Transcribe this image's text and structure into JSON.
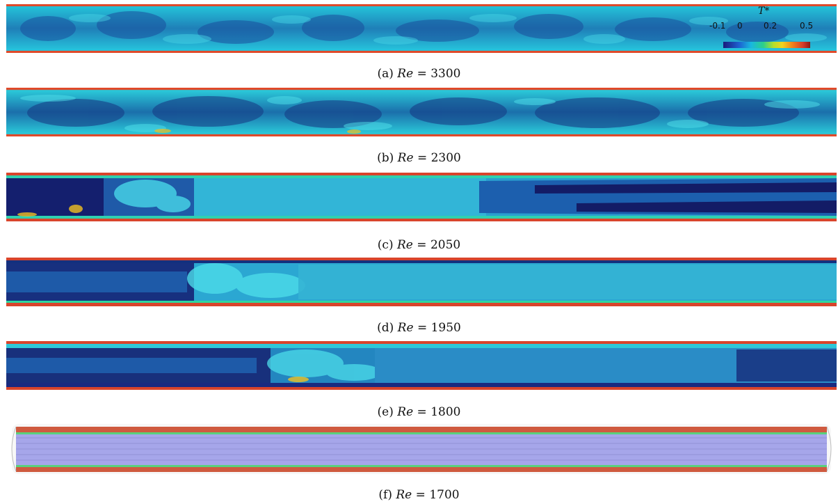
{
  "figure": {
    "colorbar": {
      "title": "T*",
      "ticks": [
        "-0.1",
        "0",
        "0.2",
        "0.5"
      ]
    },
    "panels": [
      {
        "label": "(a)",
        "variable": "Re",
        "equals": "=",
        "value": "3300"
      },
      {
        "label": "(b)",
        "variable": "Re",
        "equals": "=",
        "value": "2300"
      },
      {
        "label": "(c)",
        "variable": "Re",
        "equals": "=",
        "value": "2050"
      },
      {
        "label": "(d)",
        "variable": "Re",
        "equals": "=",
        "value": "1950"
      },
      {
        "label": "(e)",
        "variable": "Re",
        "equals": "=",
        "value": "1800"
      },
      {
        "label": "(f)",
        "variable": "Re",
        "equals": "=",
        "value": "1700"
      }
    ]
  }
}
